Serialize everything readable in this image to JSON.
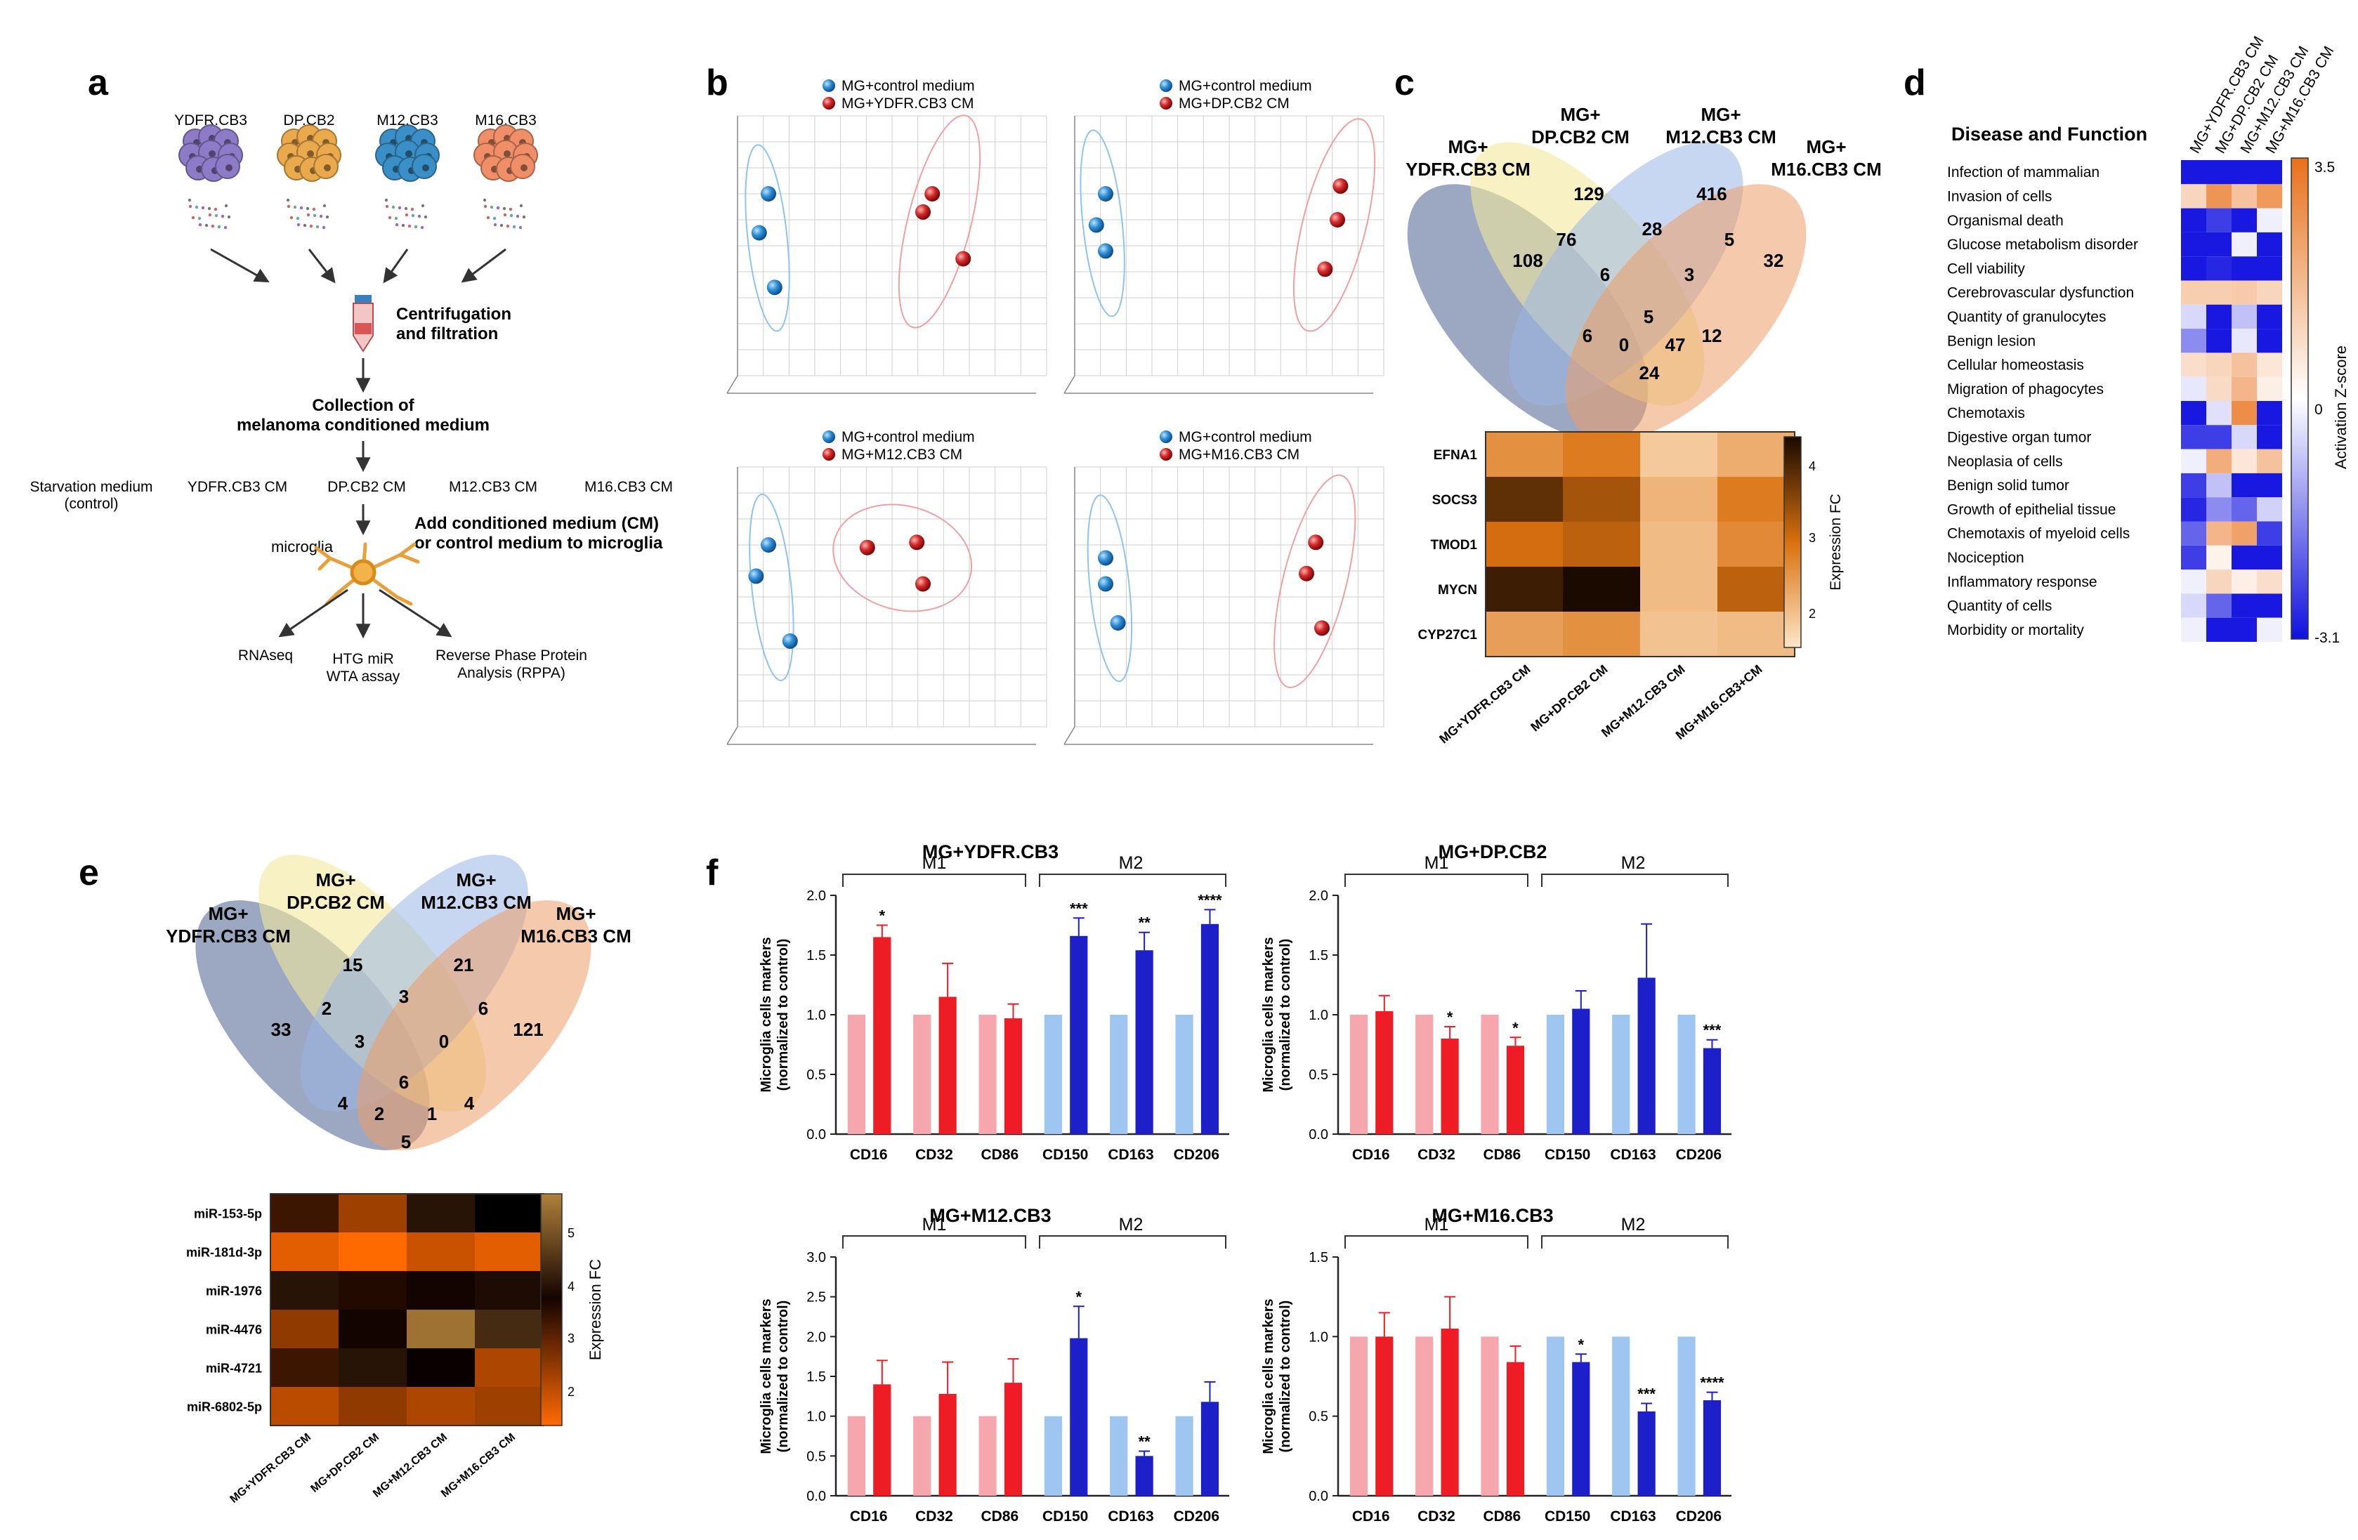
{
  "panel_letters": {
    "a": "a",
    "b": "b",
    "c": "c",
    "d": "d",
    "e": "e",
    "f": "f"
  },
  "panel_a": {
    "cell_lines": [
      "YDFR.CB3",
      "DP.CB2",
      "M12.CB3",
      "M16.CB3"
    ],
    "cell_colors": [
      "#8e7bc7",
      "#eaa94c",
      "#3a8fc6",
      "#ef8e67"
    ],
    "step_centrifugation": [
      "Centrifugation",
      "and filtration"
    ],
    "step_collection": [
      "Collection of",
      "melanoma conditioned medium"
    ],
    "media": [
      "Starvation medium",
      "(control)",
      "YDFR.CB3 CM",
      "DP.CB2 CM",
      "M12.CB3 CM",
      "M16.CB3 CM"
    ],
    "microglia_label": "microglia",
    "add_medium": [
      "Add conditioned medium (CM)",
      "or control medium to microglia"
    ],
    "assays": [
      "RNAseq",
      "HTG miR",
      "WTA assay",
      "Reverse Phase Protein",
      "Analysis (RPPA)"
    ]
  },
  "panel_b": {
    "plots": [
      {
        "legend_control": "MG+control medium",
        "legend_treated": "MG+YDFR.CB3 CM"
      },
      {
        "legend_control": "MG+control medium",
        "legend_treated": "MG+DP.CB2 CM"
      },
      {
        "legend_control": "MG+control medium",
        "legend_treated": "MG+M12.CB3 CM"
      },
      {
        "legend_control": "MG+control medium",
        "legend_treated": "MG+M16.CB3 CM"
      }
    ],
    "colors": {
      "control": "#2f8fd6",
      "treated": "#d42a2a"
    }
  },
  "panel_c": {
    "venn_labels": [
      [
        "MG+",
        "YDFR.CB3 CM"
      ],
      [
        "MG+",
        "DP.CB2 CM"
      ],
      [
        "MG+",
        "M12.CB3 CM"
      ],
      [
        "MG+",
        "M16.CB3 CM"
      ]
    ],
    "venn_numbers": [
      "108",
      "129",
      "416",
      "32",
      "76",
      "28",
      "5",
      "6",
      "3",
      "6",
      "5",
      "12",
      "0",
      "47",
      "24"
    ],
    "heatmap_genes": [
      "EFNA1",
      "SOCS3",
      "TMOD1",
      "MYCN",
      "CYP27C1"
    ],
    "heatmap_columns": [
      "MG+YDFR.CB3 CM",
      "MG+DP.CB2 CM",
      "MG+M12.CB3 CM",
      "MG+M16.CB3+CM"
    ],
    "heatmap_values": [
      [
        2.7,
        3.0,
        1.9,
        2.3
      ],
      [
        4.2,
        3.6,
        2.2,
        3.0
      ],
      [
        3.2,
        3.4,
        2.1,
        2.8
      ],
      [
        4.5,
        4.8,
        2.1,
        3.4
      ],
      [
        2.5,
        2.7,
        2.0,
        2.1
      ]
    ],
    "colorbar_title": "Expression FC",
    "colorbar_ticks": [
      "4",
      "3",
      "2"
    ]
  },
  "panel_d": {
    "title": "Disease and Function",
    "columns": [
      "MG+YDFR.CB3 CM",
      "MG+DP.CB2 CM",
      "MG+M12.CB3 CM",
      "MG+M16.CB3 CM"
    ],
    "rows": [
      "Infection of mammalian",
      "Invasion of cells",
      "Organismal death",
      "Glucose metabolism disorder",
      "Cell viability",
      "Cerebrovascular dysfunction",
      "Quantity of granulocytes",
      "Benign lesion",
      "Cellular homeostasis",
      "Migration of phagocytes",
      "Chemotaxis",
      "Digestive organ tumor",
      "Neoplasia of cells",
      "Benign solid tumor",
      "Growth of epithelial tissue",
      "Chemotaxis of myeloid cells",
      "Nociception",
      "Inflammatory response",
      "Quantity of cells",
      "Morbidity or mortality"
    ],
    "zscores": [
      [
        -3,
        -3,
        -3,
        -3
      ],
      [
        1,
        2.6,
        1.5,
        2.5
      ],
      [
        -3,
        -2.5,
        -3,
        -0.2
      ],
      [
        -3,
        -3,
        -0.2,
        -3
      ],
      [
        -3,
        -2.8,
        -3,
        -3
      ],
      [
        1.2,
        1.2,
        1.3,
        1
      ],
      [
        -0.5,
        -3,
        -0.8,
        -3
      ],
      [
        -1.5,
        -3,
        -0.3,
        -3
      ],
      [
        0.8,
        1,
        1.5,
        0.6
      ],
      [
        -0.3,
        0.9,
        1.8,
        0.4
      ],
      [
        -3,
        -0.4,
        2.8,
        -3
      ],
      [
        -2.5,
        -2.5,
        -0.5,
        -3
      ],
      [
        -0.2,
        2,
        0.6,
        1.5
      ],
      [
        -2.5,
        -0.8,
        -3,
        -3
      ],
      [
        -2.8,
        -1.5,
        -2,
        -0.6
      ],
      [
        -2,
        1.8,
        2.3,
        -2.5
      ],
      [
        -2.5,
        0.3,
        -3,
        -3
      ],
      [
        -0.2,
        1,
        0.4,
        0.8
      ],
      [
        -0.5,
        -2,
        -3,
        -3
      ],
      [
        -0.2,
        -3,
        -3,
        -0.2
      ]
    ],
    "colorbar_title": "Activation Z-score",
    "colorbar_ticks": [
      "3.5",
      "0",
      "-3.1"
    ]
  },
  "panel_e": {
    "venn_labels": [
      [
        "MG+",
        "YDFR.CB3 CM"
      ],
      [
        "MG+",
        "DP.CB2 CM"
      ],
      [
        "MG+",
        "M12.CB3 CM"
      ],
      [
        "MG+",
        "M16.CB3 CM"
      ]
    ],
    "venn_numbers": [
      "33",
      "15",
      "21",
      "121",
      "2",
      "3",
      "6",
      "3",
      "0",
      "6",
      "4",
      "1",
      "2",
      "4",
      "5"
    ],
    "heatmap_mirs": [
      "miR-153-5p",
      "miR-181d-3p",
      "miR-1976",
      "miR-4476",
      "miR-4721",
      "miR-6802-5p"
    ],
    "heatmap_columns": [
      "MG+YDFR.CB3 CM",
      "MG+DP.CB2 CM",
      "MG+M12.CB3 CM",
      "MG+M16.CB3 CM"
    ],
    "heatmap_values": [
      [
        3.2,
        2.5,
        4.0,
        3.6
      ],
      [
        2.0,
        1.8,
        2.2,
        2.0
      ],
      [
        4.0,
        3.4,
        3.8,
        3.9
      ],
      [
        2.6,
        3.5,
        5.2,
        4.3
      ],
      [
        3.2,
        4.0,
        3.7,
        2.4
      ],
      [
        2.3,
        2.6,
        2.4,
        2.5
      ]
    ],
    "colorbar_title": "Expression FC",
    "colorbar_ticks": [
      "5",
      "4",
      "3",
      "2"
    ]
  },
  "chart_data": [
    {
      "type": "bar",
      "title": "MG+YDFR.CB3",
      "group_labels": [
        "M1",
        "M2"
      ],
      "categories": [
        "CD16",
        "CD32",
        "CD86",
        "CD150",
        "CD163",
        "CD206"
      ],
      "ylabel": "Microglia cells markers (normalized to control)",
      "ylim": [
        0,
        2.0
      ],
      "yticks": [
        "0.0",
        "0.5",
        "1.0",
        "1.5",
        "2.0"
      ],
      "series": [
        {
          "name": "control",
          "values": [
            1,
            1,
            1,
            1,
            1,
            1
          ]
        },
        {
          "name": "treated",
          "values": [
            1.65,
            1.15,
            0.97,
            1.66,
            1.54,
            1.76
          ],
          "errors": [
            0.1,
            0.28,
            0.12,
            0.15,
            0.15,
            0.12
          ]
        }
      ],
      "significance": [
        "*",
        "",
        "",
        "***",
        "**",
        "****"
      ]
    },
    {
      "type": "bar",
      "title": "MG+DP.CB2",
      "group_labels": [
        "M1",
        "M2"
      ],
      "categories": [
        "CD16",
        "CD32",
        "CD86",
        "CD150",
        "CD163",
        "CD206"
      ],
      "ylabel": "Microglia cells markers (normalized to control)",
      "ylim": [
        0,
        2.0
      ],
      "yticks": [
        "0.0",
        "0.5",
        "1.0",
        "1.5",
        "2.0"
      ],
      "series": [
        {
          "name": "control",
          "values": [
            1,
            1,
            1,
            1,
            1,
            1
          ]
        },
        {
          "name": "treated",
          "values": [
            1.03,
            0.8,
            0.74,
            1.05,
            1.31,
            0.72
          ],
          "errors": [
            0.13,
            0.1,
            0.07,
            0.15,
            0.45,
            0.07
          ]
        }
      ],
      "significance": [
        "",
        "*",
        "*",
        "",
        "",
        "***"
      ]
    },
    {
      "type": "bar",
      "title": "MG+M12.CB3",
      "group_labels": [
        "M1",
        "M2"
      ],
      "categories": [
        "CD16",
        "CD32",
        "CD86",
        "CD150",
        "CD163",
        "CD206"
      ],
      "ylabel": "Microglia cells markers (normalized to control)",
      "ylim": [
        0,
        3.0
      ],
      "yticks": [
        "0.0",
        "0.5",
        "1.0",
        "1.5",
        "2.0",
        "2.5",
        "3.0"
      ],
      "series": [
        {
          "name": "control",
          "values": [
            1,
            1,
            1,
            1,
            1,
            1
          ]
        },
        {
          "name": "treated",
          "values": [
            1.4,
            1.28,
            1.42,
            1.98,
            0.5,
            1.18
          ],
          "errors": [
            0.3,
            0.4,
            0.3,
            0.4,
            0.06,
            0.25
          ]
        }
      ],
      "significance": [
        "",
        "",
        "",
        "*",
        "**",
        ""
      ]
    },
    {
      "type": "bar",
      "title": "MG+M16.CB3",
      "group_labels": [
        "M1",
        "M2"
      ],
      "categories": [
        "CD16",
        "CD32",
        "CD86",
        "CD150",
        "CD163",
        "CD206"
      ],
      "ylabel": "Microglia cells markers (normalized to control)",
      "ylim": [
        0,
        1.5
      ],
      "yticks": [
        "0.0",
        "0.5",
        "1.0",
        "1.5"
      ],
      "series": [
        {
          "name": "control",
          "values": [
            1,
            1,
            1,
            1,
            1,
            1
          ]
        },
        {
          "name": "treated",
          "values": [
            1.0,
            1.05,
            0.84,
            0.84,
            0.53,
            0.6
          ],
          "errors": [
            0.15,
            0.2,
            0.1,
            0.05,
            0.05,
            0.05
          ]
        }
      ],
      "significance": [
        "",
        "",
        "",
        "*",
        "***",
        "****"
      ]
    }
  ],
  "bar_colors": {
    "m1_control": "#f6a7ae",
    "m1_treated": "#ee1c25",
    "m2_control": "#9ec6f0",
    "m2_treated": "#1d1fc9"
  }
}
